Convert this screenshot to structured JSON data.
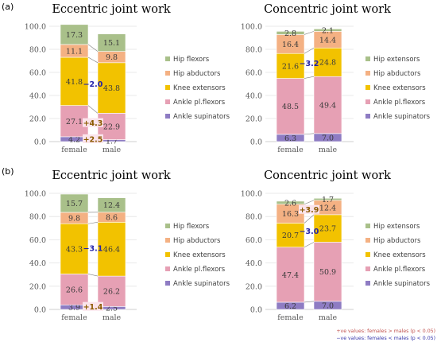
{
  "chart_data": [
    {
      "type": "bar",
      "panel": "(a)",
      "title": "Eccentric joint work",
      "categories": [
        "female",
        "male"
      ],
      "ylim": [
        0,
        100
      ],
      "yticks": [
        "0.0",
        "20.0",
        "40.0",
        "60.0",
        "80.0",
        "100.0"
      ],
      "series": [
        {
          "name": "Ankle supinators",
          "color": "#8e7cc3",
          "values": [
            4.2,
            1.7
          ]
        },
        {
          "name": "Ankle pl.flexors",
          "color": "#e6a0b4",
          "values": [
            27.1,
            22.9
          ]
        },
        {
          "name": "Knee extensors",
          "color": "#f2c200",
          "values": [
            41.8,
            43.8
          ]
        },
        {
          "name": "Hip abductors",
          "color": "#f4b183",
          "values": [
            11.1,
            9.8
          ]
        },
        {
          "name": "Hip flexors",
          "color": "#a9c08a",
          "values": [
            17.3,
            15.1
          ]
        }
      ],
      "differences": [
        {
          "series": "Ankle supinators",
          "label": "+2.5",
          "sign": "pos"
        },
        {
          "series": "Ankle pl.flexors",
          "label": "+4.3",
          "sign": "pos"
        },
        {
          "series": "Knee extensors",
          "label": "−2.0",
          "sign": "neg"
        }
      ]
    },
    {
      "type": "bar",
      "panel": "",
      "title": "Concentric joint work",
      "categories": [
        "female",
        "male"
      ],
      "ylim": [
        0,
        100
      ],
      "yticks": [
        "0.0",
        "20.0",
        "40.0",
        "60.0",
        "80.0",
        "100.0"
      ],
      "series": [
        {
          "name": "Ankle supinators",
          "color": "#8e7cc3",
          "values": [
            6.3,
            7.0
          ]
        },
        {
          "name": "Ankle pl.flexors",
          "color": "#e6a0b4",
          "values": [
            48.5,
            49.4
          ]
        },
        {
          "name": "Knee extensors",
          "color": "#f2c200",
          "values": [
            21.6,
            24.8
          ]
        },
        {
          "name": "Hip abductors",
          "color": "#f4b183",
          "values": [
            16.4,
            14.4
          ]
        },
        {
          "name": "Hip extensors",
          "color": "#a9c08a",
          "values": [
            2.8,
            2.1
          ]
        }
      ],
      "differences": [
        {
          "series": "Knee extensors",
          "label": "−3.2",
          "sign": "neg"
        }
      ]
    },
    {
      "type": "bar",
      "panel": "(b)",
      "title": "Eccentric joint work",
      "categories": [
        "female",
        "male"
      ],
      "ylim": [
        0,
        100
      ],
      "yticks": [
        "0.0",
        "20.0",
        "40.0",
        "60.0",
        "80.0",
        "100.0"
      ],
      "series": [
        {
          "name": "Ankle supinators",
          "color": "#8e7cc3",
          "values": [
            3.9,
            2.5
          ]
        },
        {
          "name": "Ankle pl.flexors",
          "color": "#e6a0b4",
          "values": [
            26.6,
            26.2
          ]
        },
        {
          "name": "Knee extensors",
          "color": "#f2c200",
          "values": [
            43.3,
            46.4
          ]
        },
        {
          "name": "Hip abductors",
          "color": "#f4b183",
          "values": [
            9.8,
            8.6
          ]
        },
        {
          "name": "Hip flexors",
          "color": "#a9c08a",
          "values": [
            15.7,
            12.4
          ]
        }
      ],
      "differences": [
        {
          "series": "Ankle supinators",
          "label": "+1.4",
          "sign": "pos"
        },
        {
          "series": "Knee extensors",
          "label": "−3.1",
          "sign": "neg"
        }
      ]
    },
    {
      "type": "bar",
      "panel": "",
      "title": "Concentric joint work",
      "categories": [
        "female",
        "male"
      ],
      "ylim": [
        0,
        100
      ],
      "yticks": [
        "0.0",
        "20.0",
        "40.0",
        "60.0",
        "80.0",
        "100.0"
      ],
      "series": [
        {
          "name": "Ankle supinators",
          "color": "#8e7cc3",
          "values": [
            6.2,
            7.0
          ]
        },
        {
          "name": "Ankle pl.flexors",
          "color": "#e6a0b4",
          "values": [
            47.4,
            50.9
          ]
        },
        {
          "name": "Knee extensors",
          "color": "#f2c200",
          "values": [
            20.7,
            23.7
          ]
        },
        {
          "name": "Hip abductors",
          "color": "#f4b183",
          "values": [
            16.3,
            12.4
          ]
        },
        {
          "name": "Hip extensors",
          "color": "#a9c08a",
          "values": [
            2.6,
            1.7
          ]
        }
      ],
      "differences": [
        {
          "series": "Hip abductors",
          "label": "+3.9",
          "sign": "pos"
        },
        {
          "series": "Knee extensors",
          "label": "−3.0",
          "sign": "neg"
        }
      ]
    }
  ],
  "footnote": {
    "positive": "+ve values: females > males (p < 0.05)",
    "negative": "−ve values: females < males (p < 0.05)"
  },
  "colors": {
    "positive": "#c0504d",
    "negative": "#3333aa",
    "pos_text": "#8b5a00",
    "neg_text": "#2222aa"
  }
}
